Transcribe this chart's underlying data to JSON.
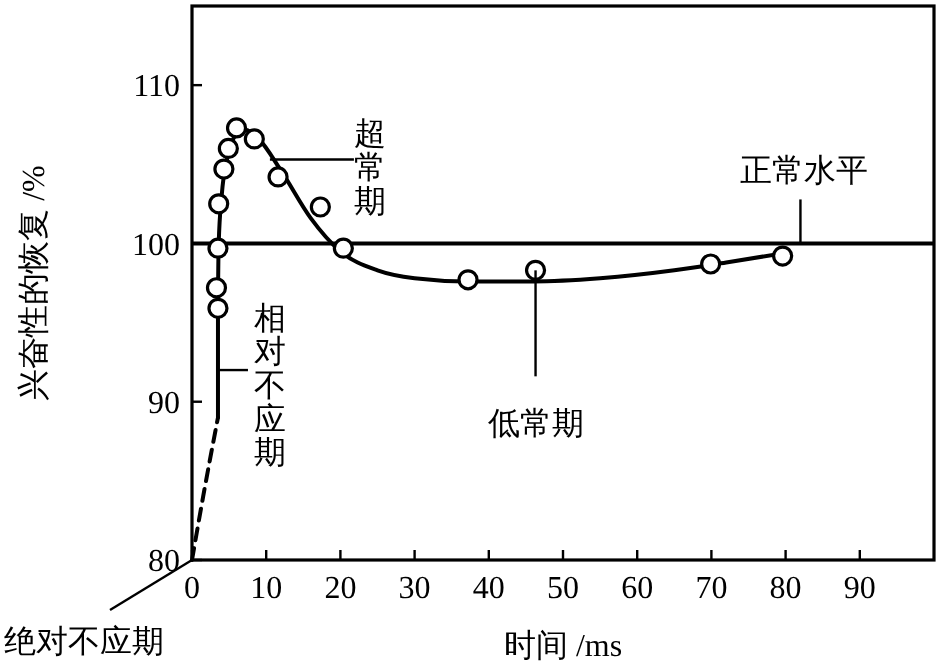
{
  "chart_data": {
    "type": "line",
    "xlabel": "时间 /ms",
    "ylabel": "兴奋性的恢复 /%",
    "xlim": [
      0,
      100
    ],
    "ylim": [
      80,
      115
    ],
    "xticks": [
      0,
      10,
      20,
      30,
      40,
      50,
      60,
      70,
      80,
      90
    ],
    "yticks": [
      80,
      90,
      100,
      110
    ],
    "grid": false,
    "series": [
      {
        "color": "#000000",
        "line_style": "solid",
        "x": [
          3.5,
          3.5,
          3.6,
          4,
          4.8,
          5.8,
          7,
          9,
          12,
          16,
          20,
          25,
          30,
          37,
          46,
          55,
          65,
          72,
          80
        ],
        "values": [
          89,
          96,
          100,
          103,
          105.5,
          106.8,
          107.2,
          106.6,
          104.6,
          101.6,
          99.5,
          98.3,
          97.8,
          97.6,
          97.6,
          97.8,
          98.3,
          98.8,
          99.4
        ]
      },
      {
        "color": "#000000",
        "line_style": "dashed",
        "x": [
          0,
          1.5,
          3.5
        ],
        "values": [
          80,
          84,
          89
        ]
      },
      {
        "type": "scatter",
        "color": "#000000",
        "marker": "circle",
        "x": [
          3.5,
          3.3,
          3.5,
          3.6,
          4.3,
          4.9,
          6,
          8.4,
          11.6,
          17.3,
          20.4,
          37.2,
          46.3,
          69.9,
          79.6
        ],
        "values": [
          95.9,
          97.2,
          99.7,
          102.5,
          104.7,
          106,
          107.3,
          106.6,
          104.2,
          102.3,
          99.7,
          97.7,
          98.3,
          98.7,
          99.2
        ]
      }
    ],
    "ref_lines": [
      {
        "axis": "y",
        "value": 100,
        "color": "#000000",
        "line_style": "solid"
      }
    ],
    "annotations": [
      {
        "text": "超常期",
        "x": 10.5,
        "y": 105.3
      },
      {
        "text": "相对不应期",
        "x": 3.5,
        "y": 92
      },
      {
        "text": "低常期",
        "x": 46.3,
        "y": 98.3
      },
      {
        "text": "正常水平",
        "x": 82,
        "y": 100
      },
      {
        "text": "绝对不应期",
        "x": 0,
        "y": 80
      }
    ]
  }
}
